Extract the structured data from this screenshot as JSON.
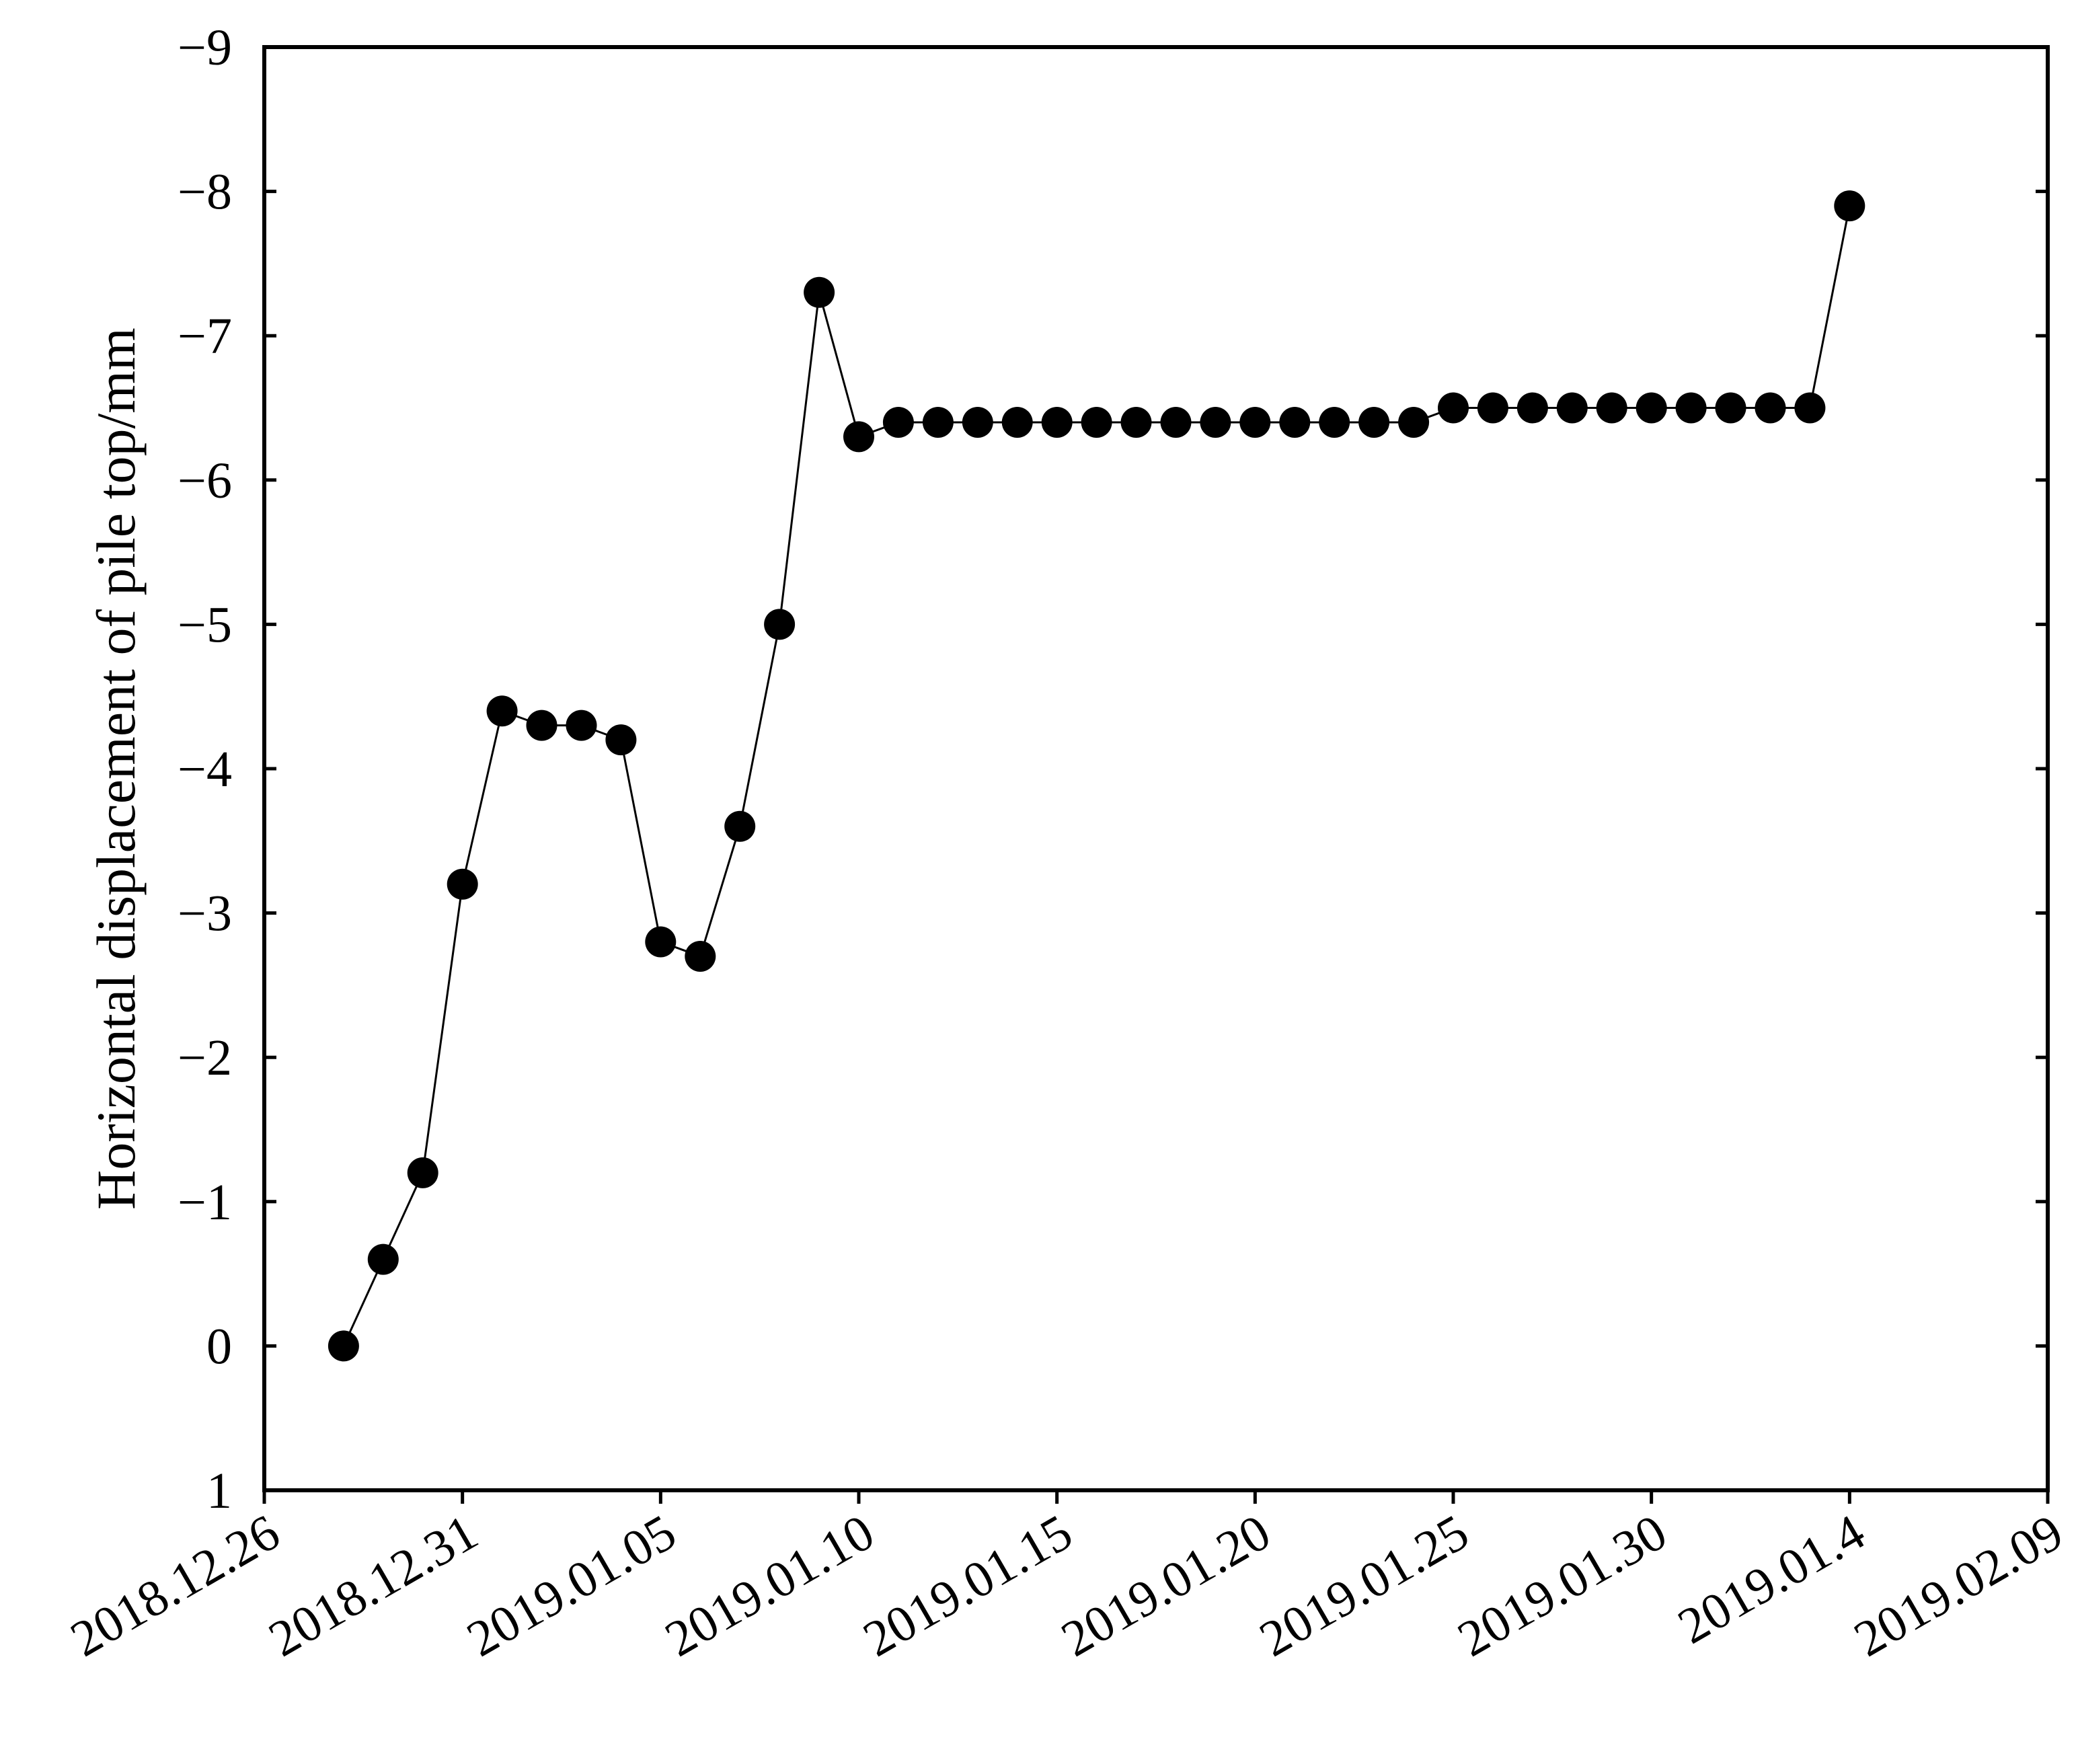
{
  "chart_data": {
    "type": "scatter",
    "title": "",
    "xlabel": "",
    "ylabel": "Horizontal displacement of pile top/mm",
    "x_tick_labels": [
      "2018.12.26",
      "2018.12.31",
      "2019.01.05",
      "2019.01.10",
      "2019.01.15",
      "2019.01.20",
      "2019.01.25",
      "2019.01.30",
      "2019.01.4",
      "2019.02.09"
    ],
    "y_tick_labels": [
      "1",
      "0",
      "−1",
      "−2",
      "−3",
      "−4",
      "−5",
      "−6",
      "−7",
      "−8",
      "−9"
    ],
    "xlim": [
      "2018-12-26",
      "2019-02-09"
    ],
    "ylim": [
      1,
      -9
    ],
    "y_axis_inverted": true,
    "grid": false,
    "legend": "none",
    "line_color": "#000000",
    "marker_color": "#000000",
    "marker": "filled-circle",
    "series": [
      {
        "x": [
          "2018-12-28",
          "2018-12-29",
          "2018-12-30",
          "2018-12-31",
          "2019-01-01",
          "2019-01-02",
          "2019-01-03",
          "2019-01-04",
          "2019-01-05",
          "2019-01-06",
          "2019-01-07",
          "2019-01-08",
          "2019-01-09",
          "2019-01-10",
          "2019-01-11",
          "2019-01-12",
          "2019-01-13",
          "2019-01-14",
          "2019-01-15",
          "2019-01-16",
          "2019-01-17",
          "2019-01-18",
          "2019-01-19",
          "2019-01-20",
          "2019-01-21",
          "2019-01-22",
          "2019-01-23",
          "2019-01-24",
          "2019-01-25",
          "2019-01-26",
          "2019-01-27",
          "2019-01-28",
          "2019-01-29",
          "2019-01-30",
          "2019-01-31",
          "2019-02-01",
          "2019-02-02",
          "2019-02-03",
          "2019-02-04"
        ],
        "values": [
          0,
          -0.6,
          -1.2,
          -3.2,
          -4.4,
          -4.3,
          -4.3,
          -4.2,
          -2.8,
          -2.7,
          -3.6,
          -5.0,
          -7.3,
          -6.3,
          -6.4,
          -6.4,
          -6.4,
          -6.4,
          -6.4,
          -6.4,
          -6.4,
          -6.4,
          -6.4,
          -6.4,
          -6.4,
          -6.4,
          -6.4,
          -6.4,
          -6.5,
          -6.5,
          -6.5,
          -6.5,
          -6.5,
          -6.5,
          -6.5,
          -6.5,
          -6.5,
          -6.5,
          -7.9
        ]
      }
    ]
  }
}
